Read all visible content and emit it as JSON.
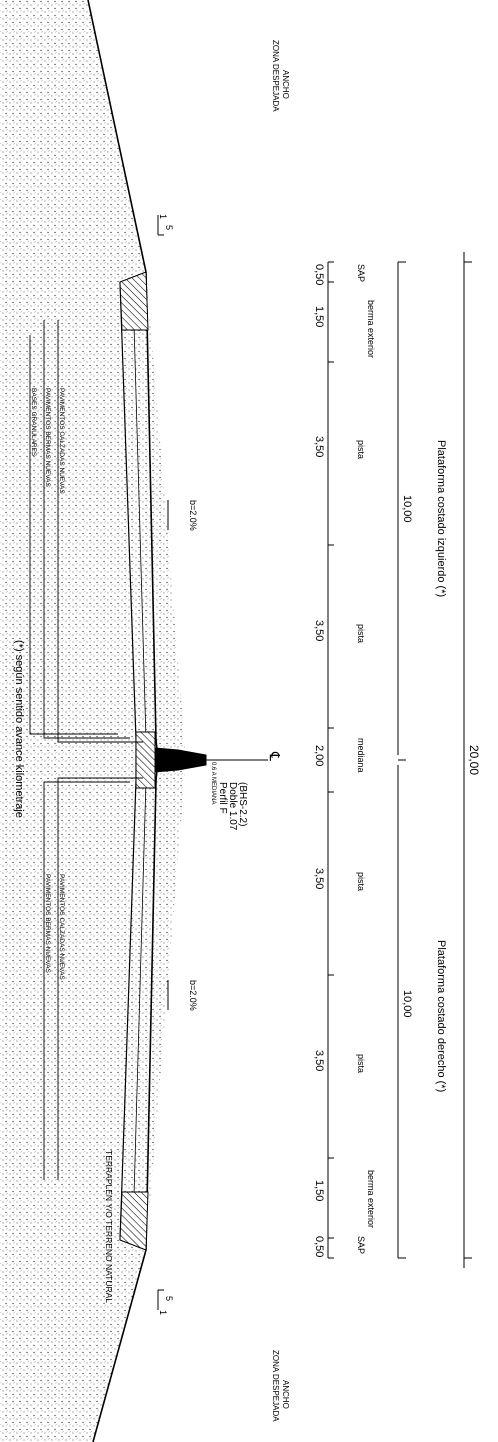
{
  "colors": {
    "ink": "#000000",
    "soil": "#d9d9d9",
    "hatch": "#000000",
    "background": "#ffffff"
  },
  "platform": {
    "total_width": "20,00",
    "left_label": "Plataforma costado izquierdo (*)",
    "right_label": "Plataforma costado derecho (*)",
    "left_width": "10,00",
    "right_width": "10,00"
  },
  "lanes": [
    {
      "label": "SAP",
      "width": "0,50"
    },
    {
      "label": "berma exterior",
      "width": "1,50"
    },
    {
      "label": "pista",
      "width": "3,50"
    },
    {
      "label": "pista",
      "width": "3,50"
    },
    {
      "label": "mediana",
      "width": "2,00"
    },
    {
      "label": "pista",
      "width": "3,50"
    },
    {
      "label": "pista",
      "width": "3,50"
    },
    {
      "label": "berma exterior",
      "width": "1,50"
    },
    {
      "label": "SAP",
      "width": "0,50"
    }
  ],
  "centerline_symbol": "℄",
  "barrier": {
    "line1": "Perfil F",
    "line2": "Doble 1.07",
    "line3": "(BHS-2.2)",
    "note": "0.6 A MEDIANA"
  },
  "slopes": {
    "left": "b=2.0%",
    "right": "b=2.0%"
  },
  "side_slope": {
    "rise": "1",
    "run": "5"
  },
  "clear_zone": {
    "line1": "ANCHO",
    "line2": "ZONA DESPEJADA"
  },
  "layers": {
    "carriageway": "PAVIMENTOS CALZADAS NUEVAS",
    "shoulders": "PAVIMENTOS BERMAS NUEVAS",
    "bases": "BASES GRANULARES"
  },
  "footnote": "(*) según sentido avance kilometraje",
  "embankment": "TERRAPLEN Y/O TERRENO NATURAL"
}
